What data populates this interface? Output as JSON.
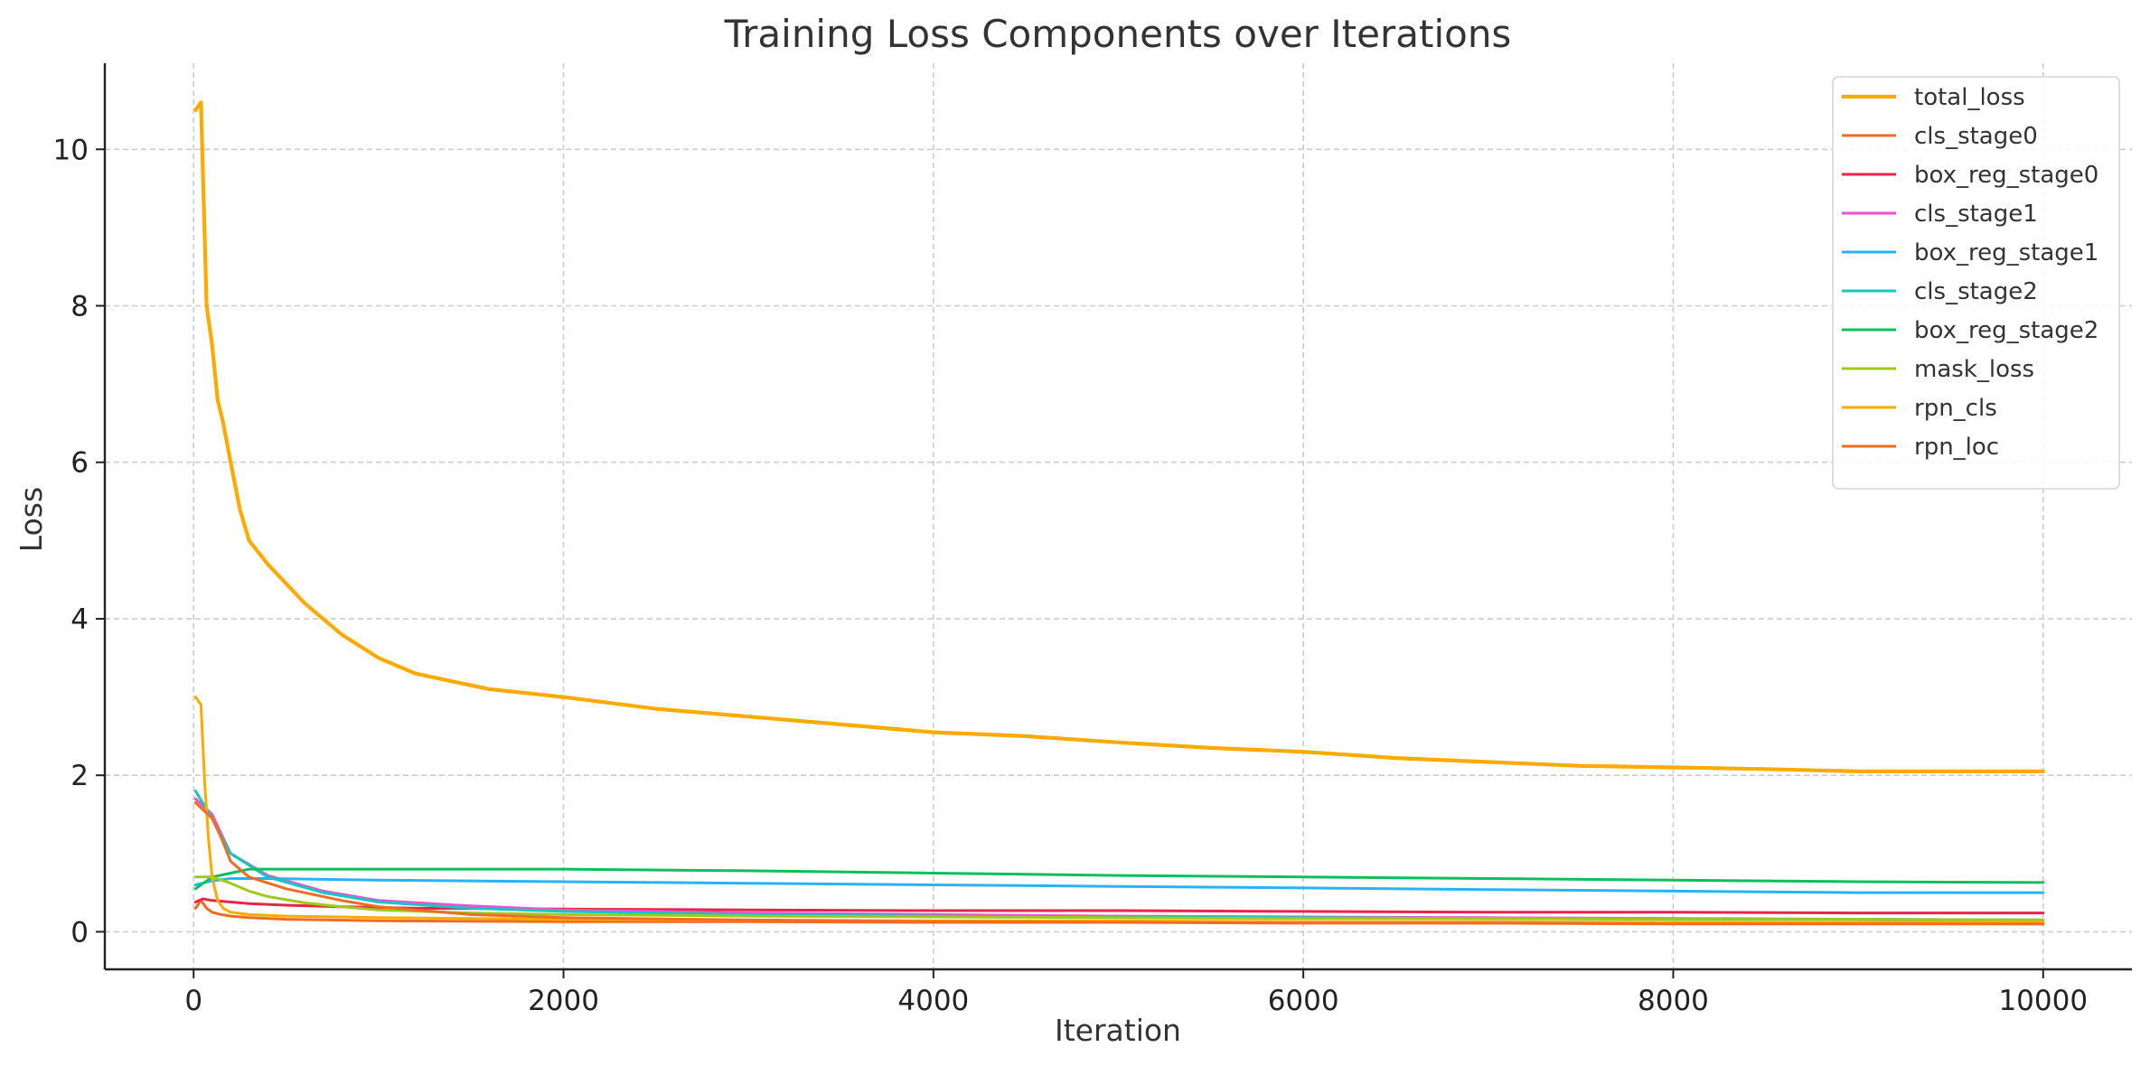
{
  "chart_data": {
    "type": "line",
    "title": "Training Loss Components over Iterations",
    "xlabel": "Iteration",
    "ylabel": "Loss",
    "xlim": [
      -480,
      10480
    ],
    "ylim": [
      -0.48,
      11.1
    ],
    "xticks": [
      0,
      2000,
      4000,
      6000,
      8000,
      10000
    ],
    "xtick_labels": [
      "0",
      "2000",
      "4000",
      "6000",
      "8000",
      "10000"
    ],
    "yticks": [
      0,
      2,
      4,
      6,
      8,
      10
    ],
    "ytick_labels": [
      "0",
      "2",
      "4",
      "6",
      "8",
      "10"
    ],
    "grid": true,
    "legend_position": "top-right",
    "series": [
      {
        "name": "total_loss",
        "color": "#FFAA00",
        "width": 4.2,
        "x": [
          10,
          40,
          70,
          100,
          130,
          160,
          200,
          250,
          300,
          350,
          400,
          500,
          600,
          700,
          800,
          900,
          1000,
          1200,
          1400,
          1600,
          1800,
          2000,
          2500,
          3000,
          3500,
          4000,
          4500,
          5000,
          5500,
          6000,
          6500,
          7000,
          7500,
          8000,
          8500,
          9000,
          9500,
          10000
        ],
        "y": [
          10.5,
          10.6,
          8.0,
          7.5,
          6.8,
          6.5,
          6.0,
          5.4,
          5.0,
          4.85,
          4.7,
          4.45,
          4.2,
          4.0,
          3.8,
          3.65,
          3.5,
          3.3,
          3.2,
          3.1,
          3.05,
          3.0,
          2.85,
          2.75,
          2.65,
          2.55,
          2.5,
          2.42,
          2.35,
          2.3,
          2.22,
          2.17,
          2.12,
          2.1,
          2.08,
          2.05,
          2.05,
          2.05
        ]
      },
      {
        "name": "cls_stage0",
        "color": "#F26B22",
        "width": 3,
        "x": [
          10,
          40,
          70,
          100,
          150,
          200,
          300,
          500,
          1000,
          2000,
          3000,
          4000,
          5000,
          6000,
          7000,
          8000,
          9000,
          10000
        ],
        "y": [
          0.3,
          0.4,
          0.3,
          0.25,
          0.22,
          0.2,
          0.18,
          0.16,
          0.14,
          0.13,
          0.13,
          0.12,
          0.12,
          0.12,
          0.11,
          0.11,
          0.11,
          0.1
        ]
      },
      {
        "name": "box_reg_stage0",
        "color": "#E8244A",
        "width": 3,
        "x": [
          10,
          50,
          100,
          200,
          300,
          500,
          800,
          1200,
          2000,
          3000,
          4000,
          5000,
          6000,
          7000,
          8000,
          9000,
          10000
        ],
        "y": [
          0.38,
          0.42,
          0.4,
          0.38,
          0.36,
          0.34,
          0.32,
          0.3,
          0.29,
          0.28,
          0.27,
          0.27,
          0.26,
          0.25,
          0.25,
          0.24,
          0.24
        ]
      },
      {
        "name": "cls_stage1",
        "color": "#F04FD2",
        "width": 3,
        "x": [
          10,
          100,
          200,
          400,
          700,
          1000,
          1500,
          2000,
          3000,
          4000,
          5000,
          6000,
          7000,
          8000,
          9000,
          10000
        ],
        "y": [
          1.7,
          1.5,
          1.0,
          0.72,
          0.52,
          0.4,
          0.33,
          0.28,
          0.24,
          0.22,
          0.2,
          0.19,
          0.18,
          0.17,
          0.16,
          0.15
        ]
      },
      {
        "name": "box_reg_stage1",
        "color": "#27B3F5",
        "width": 3,
        "x": [
          10,
          100,
          200,
          400,
          700,
          1000,
          1500,
          2000,
          3000,
          4000,
          5000,
          6000,
          7000,
          8000,
          9000,
          10000
        ],
        "y": [
          0.6,
          0.65,
          0.68,
          0.68,
          0.67,
          0.66,
          0.65,
          0.64,
          0.62,
          0.6,
          0.58,
          0.56,
          0.54,
          0.52,
          0.5,
          0.5
        ]
      },
      {
        "name": "cls_stage2",
        "color": "#17C6C2",
        "width": 3,
        "x": [
          10,
          100,
          200,
          400,
          700,
          1000,
          1500,
          2000,
          3000,
          4000,
          5000,
          6000,
          7000,
          8000,
          9000,
          10000
        ],
        "y": [
          1.8,
          1.45,
          1.0,
          0.7,
          0.5,
          0.38,
          0.3,
          0.26,
          0.22,
          0.2,
          0.19,
          0.18,
          0.17,
          0.16,
          0.16,
          0.15
        ]
      },
      {
        "name": "box_reg_stage2",
        "color": "#0DBF5C",
        "width": 3,
        "x": [
          10,
          100,
          200,
          300,
          500,
          1000,
          2000,
          3000,
          4000,
          5000,
          6000,
          7000,
          8000,
          9000,
          10000
        ],
        "y": [
          0.55,
          0.7,
          0.75,
          0.8,
          0.8,
          0.8,
          0.8,
          0.78,
          0.75,
          0.72,
          0.7,
          0.68,
          0.66,
          0.64,
          0.63
        ]
      },
      {
        "name": "mask_loss",
        "color": "#9FCA1C",
        "width": 3,
        "x": [
          10,
          100,
          200,
          300,
          400,
          600,
          800,
          1000,
          1500,
          2000,
          3000,
          4000,
          5000,
          6000,
          7000,
          8000,
          9000,
          10000
        ],
        "y": [
          0.7,
          0.7,
          0.62,
          0.52,
          0.45,
          0.37,
          0.32,
          0.28,
          0.24,
          0.22,
          0.2,
          0.19,
          0.18,
          0.17,
          0.17,
          0.16,
          0.16,
          0.15
        ]
      },
      {
        "name": "rpn_cls",
        "color": "#FFAA00",
        "width": 3,
        "x": [
          10,
          40,
          60,
          80,
          100,
          130,
          160,
          200,
          300,
          500,
          1000,
          2000,
          3000,
          4000,
          5000,
          6000,
          7000,
          8000,
          9000,
          10000
        ],
        "y": [
          3.0,
          2.9,
          1.9,
          1.2,
          0.7,
          0.4,
          0.3,
          0.25,
          0.22,
          0.2,
          0.18,
          0.16,
          0.15,
          0.14,
          0.14,
          0.13,
          0.13,
          0.12,
          0.12,
          0.12
        ]
      },
      {
        "name": "rpn_loc",
        "color": "#F26B22",
        "width": 3,
        "x": [
          10,
          100,
          150,
          200,
          300,
          500,
          800,
          1000,
          1500,
          2000,
          3000,
          4000,
          5000,
          6000,
          7000,
          8000,
          9000,
          10000
        ],
        "y": [
          1.65,
          1.45,
          1.2,
          0.9,
          0.7,
          0.55,
          0.4,
          0.32,
          0.22,
          0.18,
          0.15,
          0.13,
          0.12,
          0.11,
          0.11,
          0.1,
          0.1,
          0.1
        ]
      }
    ]
  }
}
